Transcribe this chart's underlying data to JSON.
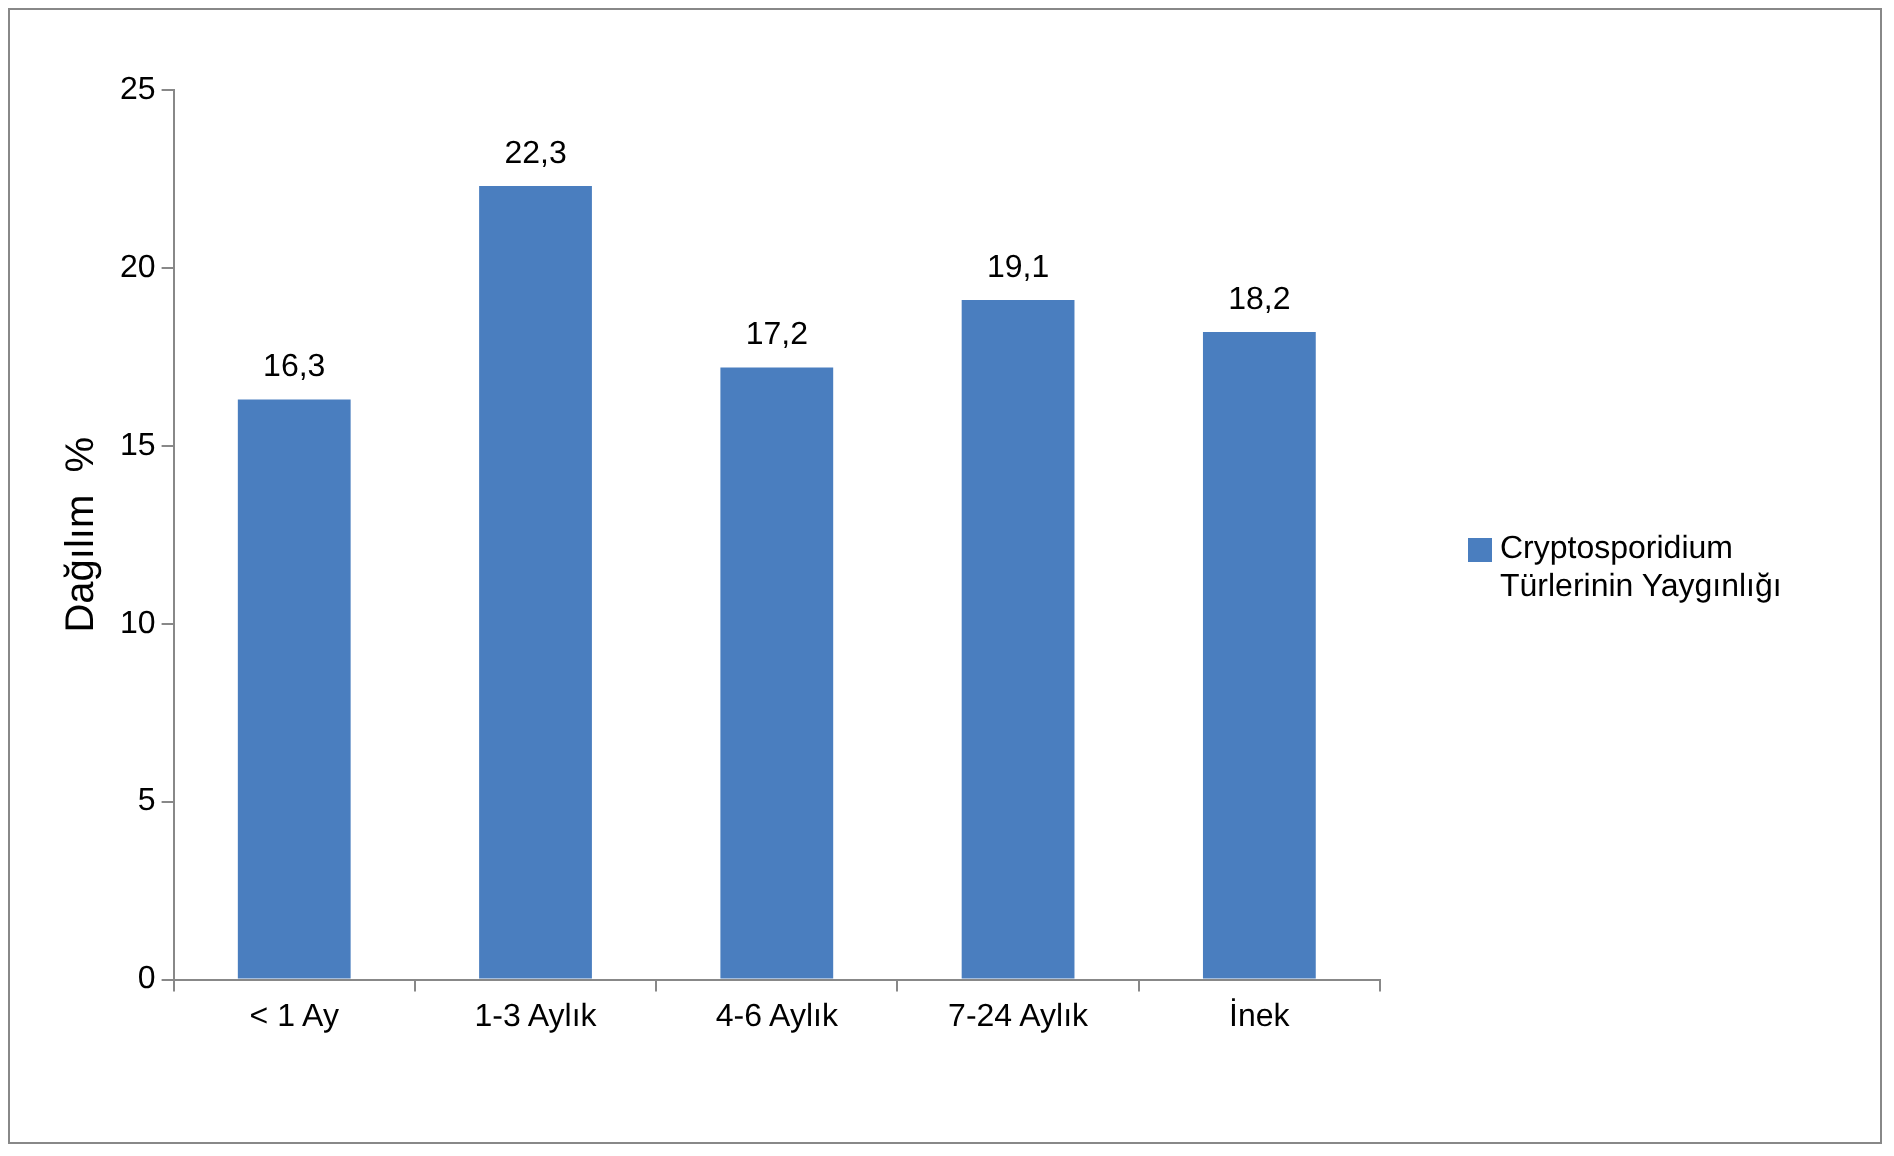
{
  "chart_data": {
    "type": "bar",
    "ylabel": "Dağılım  %",
    "categories": [
      "< 1 Ay",
      "1-3 Aylık",
      "4-6 Aylık",
      "7-24 Aylık",
      "İnek"
    ],
    "series": [
      {
        "name": "Cryptosporidium Türlerinin Yaygınlığı",
        "color": "#4a7ebf",
        "values": [
          16.3,
          22.3,
          17.2,
          19.1,
          18.2
        ]
      }
    ],
    "value_labels": [
      "16,3",
      "22,3",
      "17,2",
      "19,1",
      "18,2"
    ],
    "ylim": [
      0,
      25
    ],
    "yticks": [
      0,
      5,
      10,
      15,
      20,
      25
    ],
    "grid": false,
    "legend": "right"
  }
}
